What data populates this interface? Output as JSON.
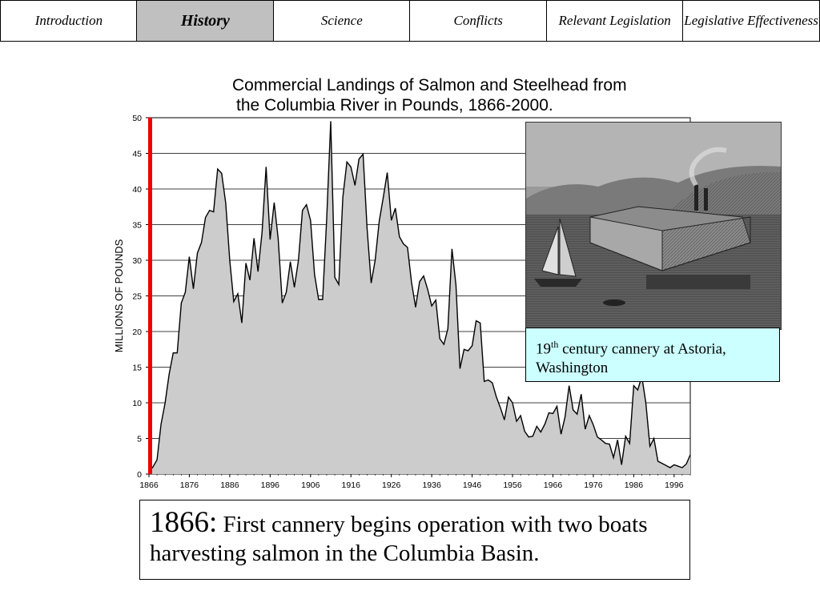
{
  "nav": {
    "tabs": [
      {
        "id": "introduction",
        "label": "Introduction",
        "active": false
      },
      {
        "id": "history",
        "label": "History",
        "active": true
      },
      {
        "id": "science",
        "label": "Science",
        "active": false
      },
      {
        "id": "conflicts",
        "label": "Conflicts",
        "active": false
      },
      {
        "id": "relevant-legislation",
        "label": "Relevant Legislation",
        "active": false
      },
      {
        "id": "legislative-effectiveness",
        "label": "Legislative Effectiveness",
        "active": false
      }
    ]
  },
  "chart_data": {
    "type": "area",
    "title_line1": "Commercial Landings of Salmon and Steelhead from",
    "title_line2": "the Columbia River in Pounds, 1866-2000.",
    "ylabel": "MILLIONS OF POUNDS",
    "xlabel": "",
    "xlim": [
      1866,
      2000
    ],
    "ylim": [
      0,
      50
    ],
    "yticks": [
      0,
      5,
      10,
      15,
      20,
      25,
      30,
      35,
      40,
      45,
      50
    ],
    "xticks": [
      1866,
      1876,
      1886,
      1896,
      1906,
      1916,
      1926,
      1936,
      1946,
      1956,
      1966,
      1976,
      1986,
      1996
    ],
    "grid": "horizontal",
    "fill_color": "#cccccc",
    "line_color": "#000000",
    "highlight_year": 1866,
    "highlight_color": "#ee0000",
    "x": [
      1866,
      1867,
      1868,
      1869,
      1870,
      1871,
      1872,
      1873,
      1874,
      1875,
      1876,
      1877,
      1878,
      1879,
      1880,
      1881,
      1882,
      1883,
      1884,
      1885,
      1886,
      1887,
      1888,
      1889,
      1890,
      1891,
      1892,
      1893,
      1894,
      1895,
      1896,
      1897,
      1898,
      1899,
      1900,
      1901,
      1902,
      1903,
      1904,
      1905,
      1906,
      1907,
      1908,
      1909,
      1910,
      1911,
      1912,
      1913,
      1914,
      1915,
      1916,
      1917,
      1918,
      1919,
      1920,
      1921,
      1922,
      1923,
      1924,
      1925,
      1926,
      1927,
      1928,
      1929,
      1930,
      1931,
      1932,
      1933,
      1934,
      1935,
      1936,
      1937,
      1938,
      1939,
      1940,
      1941,
      1942,
      1943,
      1944,
      1945,
      1946,
      1947,
      1948,
      1949,
      1950,
      1951,
      1952,
      1953,
      1954,
      1955,
      1956,
      1957,
      1958,
      1959,
      1960,
      1961,
      1962,
      1963,
      1964,
      1965,
      1966,
      1967,
      1968,
      1969,
      1970,
      1971,
      1972,
      1973,
      1974,
      1975,
      1976,
      1977,
      1978,
      1979,
      1980,
      1981,
      1982,
      1983,
      1984,
      1985,
      1986,
      1987,
      1988,
      1989,
      1990,
      1991,
      1992,
      1993,
      1994,
      1995,
      1996,
      1997,
      1998,
      1999,
      2000
    ],
    "y": [
      0.3,
      1,
      2,
      7,
      10,
      14,
      17,
      17,
      24,
      25.5,
      30.5,
      26,
      31,
      32.5,
      36,
      37,
      36.8,
      42.8,
      42.2,
      38,
      30,
      24.2,
      25.3,
      21.2,
      29.6,
      27.2,
      33.1,
      28.4,
      34,
      43.1,
      32.9,
      38.1,
      33,
      24,
      25.5,
      29.8,
      26.2,
      30,
      37,
      37.8,
      35.6,
      28,
      24.5,
      24.5,
      35.9,
      49.5,
      27.6,
      26.6,
      38.8,
      43.8,
      43.1,
      40.5,
      44.2,
      44.9,
      34.5,
      26.8,
      30,
      35.5,
      38.8,
      42.3,
      35.6,
      37.3,
      33.3,
      32.3,
      31.8,
      26.9,
      23.4,
      27,
      27.8,
      25.9,
      23.6,
      24.4,
      19,
      18.2,
      20.4,
      31.6,
      26.5,
      14.8,
      17.5,
      17.3,
      18,
      21.5,
      21.2,
      13,
      13.2,
      12.8,
      10.8,
      9.3,
      7.6,
      10.8,
      10,
      7.4,
      8.2,
      6,
      5.2,
      5.3,
      6.7,
      5.9,
      7,
      8.6,
      8.5,
      9.5,
      5.6,
      8,
      12.4,
      9,
      8.4,
      11.2,
      6.3,
      8.2,
      6.9,
      5.2,
      4.8,
      4.3,
      4.2,
      2.3,
      4.8,
      1.3,
      5.3,
      4.3,
      12.4,
      11.8,
      13.7,
      10,
      3.9,
      5,
      1.8,
      1.5,
      1.2,
      0.9,
      1.3,
      1.1,
      0.9,
      1.4,
      2.7
    ]
  },
  "photo": {
    "alt_icon": "cannery-illustration-icon"
  },
  "caption": {
    "pre": "19",
    "sup": "th",
    "post": " century cannery at Astoria, Washington"
  },
  "event": {
    "year": "1866:",
    "text": " First cannery begins operation with two boats harvesting salmon in the Columbia Basin."
  }
}
